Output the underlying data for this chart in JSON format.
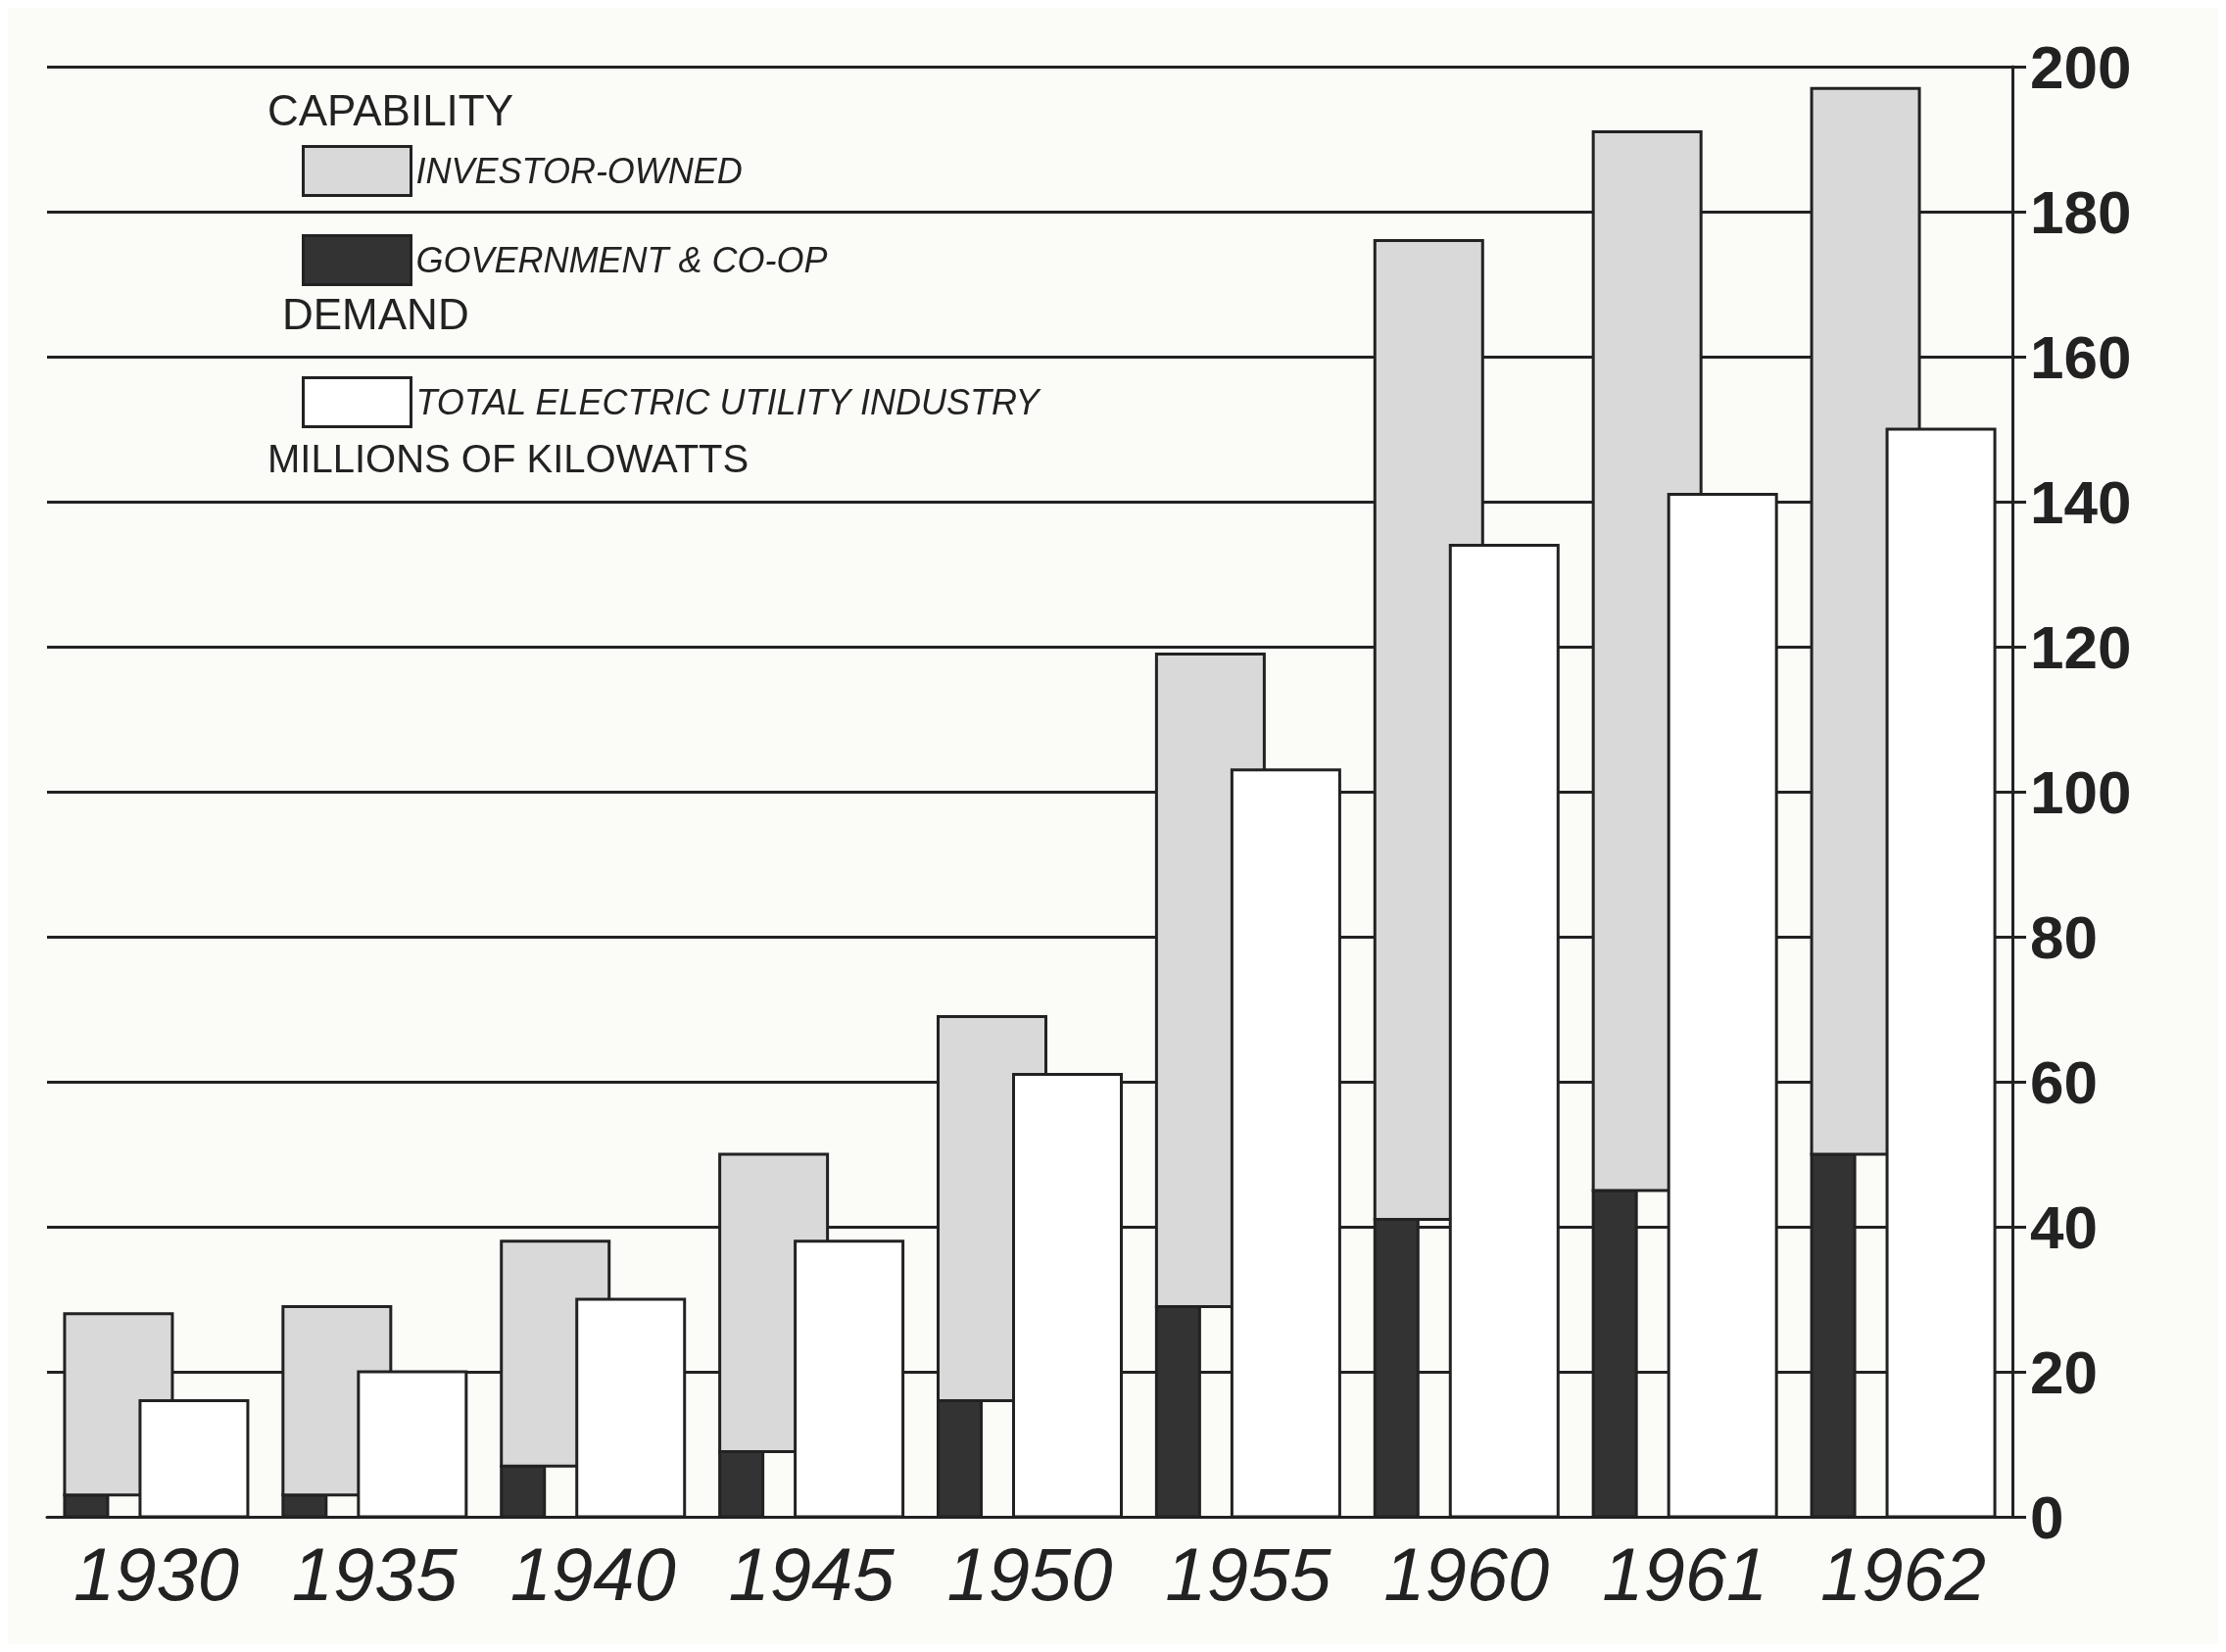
{
  "chart_data": {
    "type": "bar",
    "legend_title": "CAPABILITY",
    "ylabel": "MILLIONS OF KILOWATTS",
    "annotations": [
      "DEMAND"
    ],
    "categories": [
      "1930",
      "1935",
      "1940",
      "1945",
      "1950",
      "1955",
      "1960",
      "1961",
      "1962"
    ],
    "legend": "top left",
    "grid": "y",
    "ylim": [
      0,
      200
    ],
    "yticks": [
      0,
      20,
      40,
      60,
      80,
      100,
      120,
      140,
      160,
      180,
      200
    ],
    "series": [
      {
        "name": "GOVERNMENT & CO-OP",
        "color": "#333333",
        "values": [
          3,
          3,
          7,
          9,
          16,
          29,
          41,
          45,
          50
        ]
      },
      {
        "name": "INVESTOR-OWNED",
        "color": "#d9d9d9",
        "values": [
          25,
          26,
          31,
          41,
          53,
          90,
          135,
          146,
          147
        ],
        "base": [
          3,
          3,
          7,
          9,
          16,
          29,
          41,
          45,
          50
        ]
      },
      {
        "name": "TOTAL ELECTRIC UTILITY INDUSTRY",
        "color": "#ffffff",
        "values": [
          16,
          20,
          30,
          38,
          61,
          103,
          134,
          141,
          150
        ]
      }
    ]
  }
}
